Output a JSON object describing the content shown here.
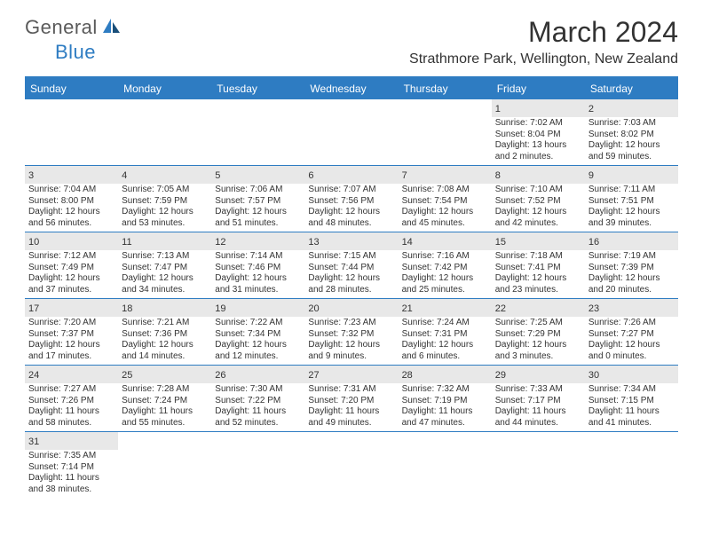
{
  "logo": {
    "text1": "General",
    "text2": "Blue"
  },
  "title": "March 2024",
  "location": "Strathmore Park, Wellington, New Zealand",
  "colors": {
    "accent": "#2e7cc2",
    "header_text": "#ffffff",
    "daynum_bg": "#e8e8e8",
    "text": "#333333",
    "logo_gray": "#5a5a5a",
    "bg": "#ffffff"
  },
  "day_labels": [
    "Sunday",
    "Monday",
    "Tuesday",
    "Wednesday",
    "Thursday",
    "Friday",
    "Saturday"
  ],
  "weeks": [
    [
      null,
      null,
      null,
      null,
      null,
      {
        "n": "1",
        "sr": "Sunrise: 7:02 AM",
        "ss": "Sunset: 8:04 PM",
        "dl1": "Daylight: 13 hours",
        "dl2": "and 2 minutes."
      },
      {
        "n": "2",
        "sr": "Sunrise: 7:03 AM",
        "ss": "Sunset: 8:02 PM",
        "dl1": "Daylight: 12 hours",
        "dl2": "and 59 minutes."
      }
    ],
    [
      {
        "n": "3",
        "sr": "Sunrise: 7:04 AM",
        "ss": "Sunset: 8:00 PM",
        "dl1": "Daylight: 12 hours",
        "dl2": "and 56 minutes."
      },
      {
        "n": "4",
        "sr": "Sunrise: 7:05 AM",
        "ss": "Sunset: 7:59 PM",
        "dl1": "Daylight: 12 hours",
        "dl2": "and 53 minutes."
      },
      {
        "n": "5",
        "sr": "Sunrise: 7:06 AM",
        "ss": "Sunset: 7:57 PM",
        "dl1": "Daylight: 12 hours",
        "dl2": "and 51 minutes."
      },
      {
        "n": "6",
        "sr": "Sunrise: 7:07 AM",
        "ss": "Sunset: 7:56 PM",
        "dl1": "Daylight: 12 hours",
        "dl2": "and 48 minutes."
      },
      {
        "n": "7",
        "sr": "Sunrise: 7:08 AM",
        "ss": "Sunset: 7:54 PM",
        "dl1": "Daylight: 12 hours",
        "dl2": "and 45 minutes."
      },
      {
        "n": "8",
        "sr": "Sunrise: 7:10 AM",
        "ss": "Sunset: 7:52 PM",
        "dl1": "Daylight: 12 hours",
        "dl2": "and 42 minutes."
      },
      {
        "n": "9",
        "sr": "Sunrise: 7:11 AM",
        "ss": "Sunset: 7:51 PM",
        "dl1": "Daylight: 12 hours",
        "dl2": "and 39 minutes."
      }
    ],
    [
      {
        "n": "10",
        "sr": "Sunrise: 7:12 AM",
        "ss": "Sunset: 7:49 PM",
        "dl1": "Daylight: 12 hours",
        "dl2": "and 37 minutes."
      },
      {
        "n": "11",
        "sr": "Sunrise: 7:13 AM",
        "ss": "Sunset: 7:47 PM",
        "dl1": "Daylight: 12 hours",
        "dl2": "and 34 minutes."
      },
      {
        "n": "12",
        "sr": "Sunrise: 7:14 AM",
        "ss": "Sunset: 7:46 PM",
        "dl1": "Daylight: 12 hours",
        "dl2": "and 31 minutes."
      },
      {
        "n": "13",
        "sr": "Sunrise: 7:15 AM",
        "ss": "Sunset: 7:44 PM",
        "dl1": "Daylight: 12 hours",
        "dl2": "and 28 minutes."
      },
      {
        "n": "14",
        "sr": "Sunrise: 7:16 AM",
        "ss": "Sunset: 7:42 PM",
        "dl1": "Daylight: 12 hours",
        "dl2": "and 25 minutes."
      },
      {
        "n": "15",
        "sr": "Sunrise: 7:18 AM",
        "ss": "Sunset: 7:41 PM",
        "dl1": "Daylight: 12 hours",
        "dl2": "and 23 minutes."
      },
      {
        "n": "16",
        "sr": "Sunrise: 7:19 AM",
        "ss": "Sunset: 7:39 PM",
        "dl1": "Daylight: 12 hours",
        "dl2": "and 20 minutes."
      }
    ],
    [
      {
        "n": "17",
        "sr": "Sunrise: 7:20 AM",
        "ss": "Sunset: 7:37 PM",
        "dl1": "Daylight: 12 hours",
        "dl2": "and 17 minutes."
      },
      {
        "n": "18",
        "sr": "Sunrise: 7:21 AM",
        "ss": "Sunset: 7:36 PM",
        "dl1": "Daylight: 12 hours",
        "dl2": "and 14 minutes."
      },
      {
        "n": "19",
        "sr": "Sunrise: 7:22 AM",
        "ss": "Sunset: 7:34 PM",
        "dl1": "Daylight: 12 hours",
        "dl2": "and 12 minutes."
      },
      {
        "n": "20",
        "sr": "Sunrise: 7:23 AM",
        "ss": "Sunset: 7:32 PM",
        "dl1": "Daylight: 12 hours",
        "dl2": "and 9 minutes."
      },
      {
        "n": "21",
        "sr": "Sunrise: 7:24 AM",
        "ss": "Sunset: 7:31 PM",
        "dl1": "Daylight: 12 hours",
        "dl2": "and 6 minutes."
      },
      {
        "n": "22",
        "sr": "Sunrise: 7:25 AM",
        "ss": "Sunset: 7:29 PM",
        "dl1": "Daylight: 12 hours",
        "dl2": "and 3 minutes."
      },
      {
        "n": "23",
        "sr": "Sunrise: 7:26 AM",
        "ss": "Sunset: 7:27 PM",
        "dl1": "Daylight: 12 hours",
        "dl2": "and 0 minutes."
      }
    ],
    [
      {
        "n": "24",
        "sr": "Sunrise: 7:27 AM",
        "ss": "Sunset: 7:26 PM",
        "dl1": "Daylight: 11 hours",
        "dl2": "and 58 minutes."
      },
      {
        "n": "25",
        "sr": "Sunrise: 7:28 AM",
        "ss": "Sunset: 7:24 PM",
        "dl1": "Daylight: 11 hours",
        "dl2": "and 55 minutes."
      },
      {
        "n": "26",
        "sr": "Sunrise: 7:30 AM",
        "ss": "Sunset: 7:22 PM",
        "dl1": "Daylight: 11 hours",
        "dl2": "and 52 minutes."
      },
      {
        "n": "27",
        "sr": "Sunrise: 7:31 AM",
        "ss": "Sunset: 7:20 PM",
        "dl1": "Daylight: 11 hours",
        "dl2": "and 49 minutes."
      },
      {
        "n": "28",
        "sr": "Sunrise: 7:32 AM",
        "ss": "Sunset: 7:19 PM",
        "dl1": "Daylight: 11 hours",
        "dl2": "and 47 minutes."
      },
      {
        "n": "29",
        "sr": "Sunrise: 7:33 AM",
        "ss": "Sunset: 7:17 PM",
        "dl1": "Daylight: 11 hours",
        "dl2": "and 44 minutes."
      },
      {
        "n": "30",
        "sr": "Sunrise: 7:34 AM",
        "ss": "Sunset: 7:15 PM",
        "dl1": "Daylight: 11 hours",
        "dl2": "and 41 minutes."
      }
    ],
    [
      {
        "n": "31",
        "sr": "Sunrise: 7:35 AM",
        "ss": "Sunset: 7:14 PM",
        "dl1": "Daylight: 11 hours",
        "dl2": "and 38 minutes."
      },
      null,
      null,
      null,
      null,
      null,
      null
    ]
  ]
}
